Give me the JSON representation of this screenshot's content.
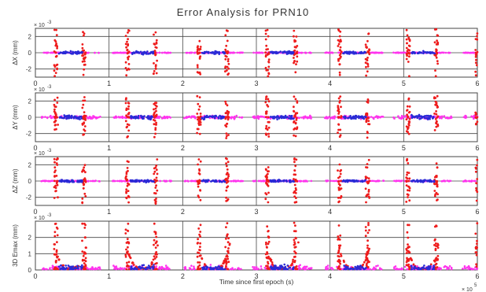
{
  "chart_data": {
    "type": "scatter",
    "title": "Error Analysis for PRN10",
    "xlabel": "Time since first epoch (s)",
    "x_exponent": "× 10",
    "x_exponent_power": "5",
    "xlim": [
      0,
      6
    ],
    "xticks": [
      0,
      1,
      2,
      3,
      4,
      5,
      6
    ],
    "xtick_labels": [
      "0",
      "1",
      "2",
      "3",
      "4",
      "5",
      "6"
    ],
    "grid": true,
    "colors": {
      "red": "#ee1c1c",
      "blue": "#2a2ad6",
      "magenta": "#ff33ee",
      "axis": "#444444"
    },
    "bursts": {
      "centers": [
        0.48,
        1.45,
        2.42,
        3.35,
        4.33,
        5.26,
        6.2
      ],
      "red_left_offset": -0.2,
      "red_right_offset": 0.18,
      "blue_halfwidth": 0.16
    },
    "panels": [
      {
        "id": "dx",
        "ylabel": "ΔX (mm)",
        "exponent": "× 10",
        "exponent_power": "-3",
        "ylim": [
          -3,
          3
        ],
        "yticks": [
          -2,
          0,
          2
        ],
        "ytick_labels": [
          "-2",
          "0",
          "2"
        ],
        "kind": "symmetric",
        "red_amp": 2.9,
        "blue_amp": 0.25,
        "magenta_amp": 0.05
      },
      {
        "id": "dy",
        "ylabel": "ΔY (mm)",
        "exponent": "× 10",
        "exponent_power": "-3",
        "ylim": [
          -3,
          3
        ],
        "yticks": [
          -2,
          0,
          2
        ],
        "ytick_labels": [
          "-2",
          "0",
          "2"
        ],
        "kind": "symmetric",
        "red_amp": 2.6,
        "blue_amp": 0.35,
        "magenta_amp": 0.25
      },
      {
        "id": "dz",
        "ylabel": "ΔZ (mm)",
        "exponent": "× 10",
        "exponent_power": "-3",
        "ylim": [
          -3,
          3
        ],
        "yticks": [
          -2,
          0,
          2
        ],
        "ytick_labels": [
          "-2",
          "0",
          "2"
        ],
        "kind": "symmetric",
        "red_amp": 2.8,
        "blue_amp": 0.2,
        "magenta_amp": 0.08
      },
      {
        "id": "e3d",
        "ylabel": "3D Emax (mm)",
        "exponent": "× 10",
        "exponent_power": "-3",
        "ylim": [
          0,
          3
        ],
        "yticks": [
          0,
          1,
          2
        ],
        "ytick_labels": [
          "0",
          "1",
          "2"
        ],
        "kind": "positive",
        "red_amp": 2.9,
        "blue_amp": 0.4,
        "magenta_amp": 0.35
      }
    ]
  }
}
